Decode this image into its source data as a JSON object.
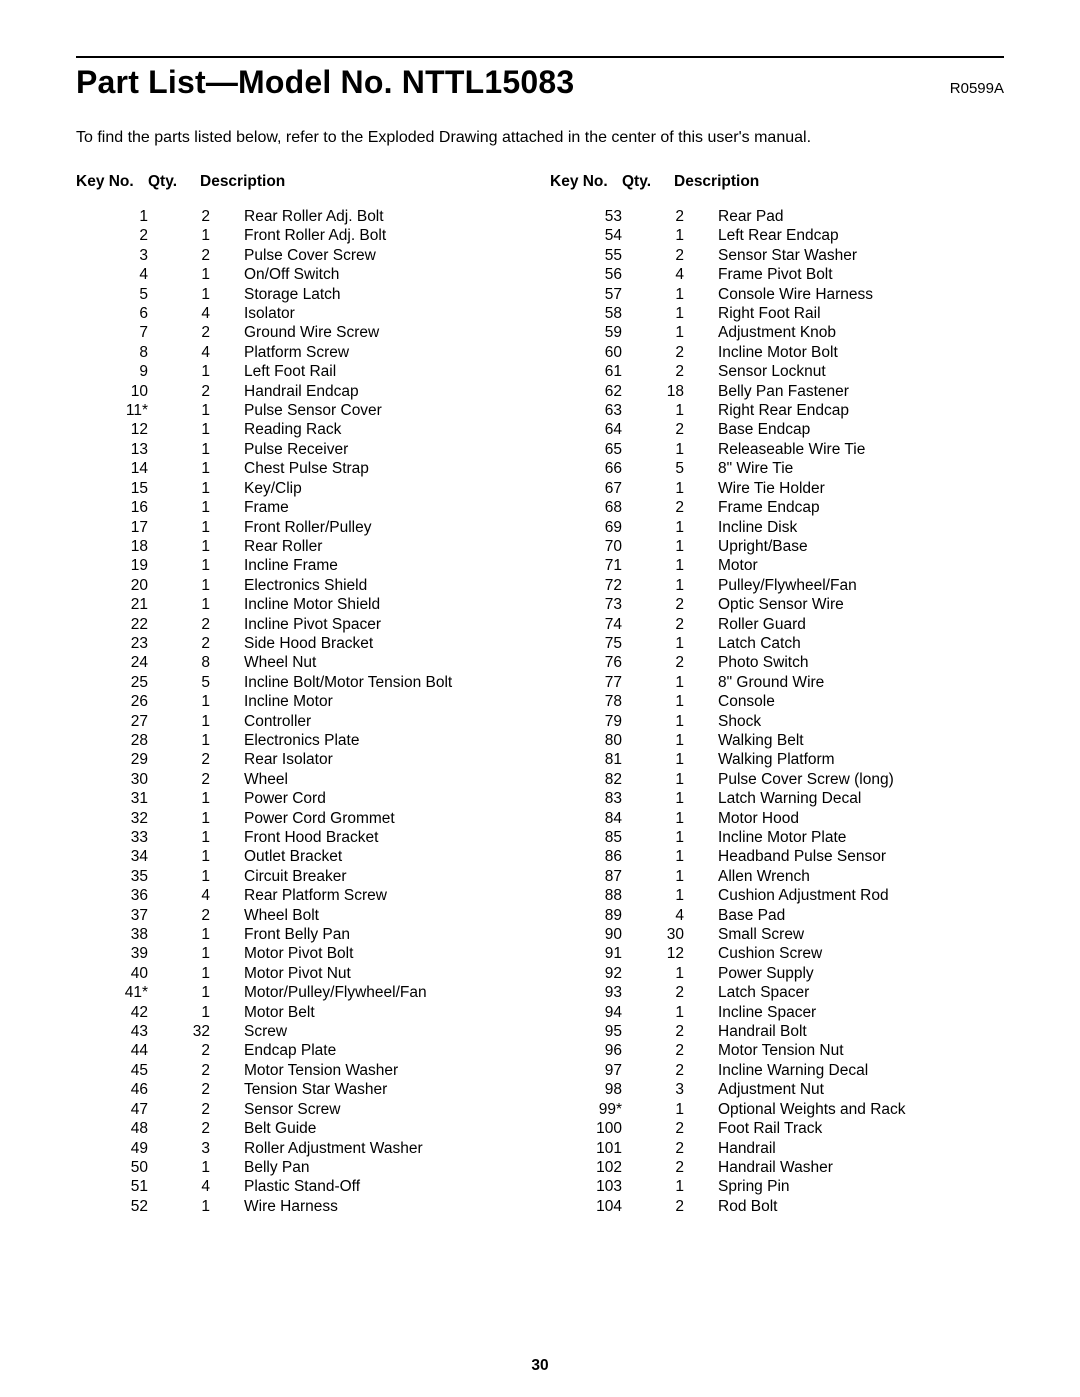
{
  "header": {
    "title": "Part List—Model No. NTTL15083",
    "revision": "R0599A"
  },
  "intro": "To find the parts listed below, refer to the Exploded Drawing attached in the center of this user's manual.",
  "col_headers": {
    "key_no": "Key No.",
    "qty": "Qty.",
    "description": "Description"
  },
  "left": [
    {
      "key": "1",
      "qty": "2",
      "desc": "Rear Roller Adj. Bolt"
    },
    {
      "key": "2",
      "qty": "1",
      "desc": "Front Roller Adj. Bolt"
    },
    {
      "key": "3",
      "qty": "2",
      "desc": "Pulse Cover Screw"
    },
    {
      "key": "4",
      "qty": "1",
      "desc": "On/Off Switch"
    },
    {
      "key": "5",
      "qty": "1",
      "desc": "Storage Latch"
    },
    {
      "key": "6",
      "qty": "4",
      "desc": "Isolator"
    },
    {
      "key": "7",
      "qty": "2",
      "desc": "Ground Wire Screw"
    },
    {
      "key": "8",
      "qty": "4",
      "desc": "Platform Screw"
    },
    {
      "key": "9",
      "qty": "1",
      "desc": "Left Foot Rail"
    },
    {
      "key": "10",
      "qty": "2",
      "desc": "Handrail Endcap"
    },
    {
      "key": "11*",
      "qty": "1",
      "desc": "Pulse Sensor Cover"
    },
    {
      "key": "12",
      "qty": "1",
      "desc": "Reading Rack"
    },
    {
      "key": "13",
      "qty": "1",
      "desc": "Pulse Receiver"
    },
    {
      "key": "14",
      "qty": "1",
      "desc": "Chest Pulse Strap"
    },
    {
      "key": "15",
      "qty": "1",
      "desc": "Key/Clip"
    },
    {
      "key": "16",
      "qty": "1",
      "desc": "Frame"
    },
    {
      "key": "17",
      "qty": "1",
      "desc": "Front Roller/Pulley"
    },
    {
      "key": "18",
      "qty": "1",
      "desc": "Rear Roller"
    },
    {
      "key": "19",
      "qty": "1",
      "desc": "Incline Frame"
    },
    {
      "key": "20",
      "qty": "1",
      "desc": "Electronics Shield"
    },
    {
      "key": "21",
      "qty": "1",
      "desc": "Incline Motor Shield"
    },
    {
      "key": "22",
      "qty": "2",
      "desc": "Incline Pivot Spacer"
    },
    {
      "key": "23",
      "qty": "2",
      "desc": "Side Hood Bracket"
    },
    {
      "key": "24",
      "qty": "8",
      "desc": "Wheel Nut"
    },
    {
      "key": "25",
      "qty": "5",
      "desc": "Incline Bolt/Motor Tension Bolt"
    },
    {
      "key": "26",
      "qty": "1",
      "desc": "Incline Motor"
    },
    {
      "key": "27",
      "qty": "1",
      "desc": "Controller"
    },
    {
      "key": "28",
      "qty": "1",
      "desc": "Electronics Plate"
    },
    {
      "key": "29",
      "qty": "2",
      "desc": "Rear Isolator"
    },
    {
      "key": "30",
      "qty": "2",
      "desc": "Wheel"
    },
    {
      "key": "31",
      "qty": "1",
      "desc": "Power Cord"
    },
    {
      "key": "32",
      "qty": "1",
      "desc": "Power Cord Grommet"
    },
    {
      "key": "33",
      "qty": "1",
      "desc": "Front Hood Bracket"
    },
    {
      "key": "34",
      "qty": "1",
      "desc": "Outlet Bracket"
    },
    {
      "key": "35",
      "qty": "1",
      "desc": "Circuit Breaker"
    },
    {
      "key": "36",
      "qty": "4",
      "desc": "Rear Platform Screw"
    },
    {
      "key": "37",
      "qty": "2",
      "desc": "Wheel Bolt"
    },
    {
      "key": "38",
      "qty": "1",
      "desc": "Front Belly Pan"
    },
    {
      "key": "39",
      "qty": "1",
      "desc": "Motor Pivot Bolt"
    },
    {
      "key": "40",
      "qty": "1",
      "desc": "Motor Pivot Nut"
    },
    {
      "key": "41*",
      "qty": "1",
      "desc": "Motor/Pulley/Flywheel/Fan"
    },
    {
      "key": "42",
      "qty": "1",
      "desc": "Motor Belt"
    },
    {
      "key": "43",
      "qty": "32",
      "desc": "Screw"
    },
    {
      "key": "44",
      "qty": "2",
      "desc": "Endcap Plate"
    },
    {
      "key": "45",
      "qty": "2",
      "desc": "Motor Tension Washer"
    },
    {
      "key": "46",
      "qty": "2",
      "desc": "Tension Star Washer"
    },
    {
      "key": "47",
      "qty": "2",
      "desc": "Sensor Screw"
    },
    {
      "key": "48",
      "qty": "2",
      "desc": "Belt Guide"
    },
    {
      "key": "49",
      "qty": "3",
      "desc": "Roller Adjustment Washer"
    },
    {
      "key": "50",
      "qty": "1",
      "desc": "Belly Pan"
    },
    {
      "key": "51",
      "qty": "4",
      "desc": "Plastic Stand-Off"
    },
    {
      "key": "52",
      "qty": "1",
      "desc": "Wire Harness"
    }
  ],
  "right": [
    {
      "key": "53",
      "qty": "2",
      "desc": "Rear Pad"
    },
    {
      "key": "54",
      "qty": "1",
      "desc": "Left Rear Endcap"
    },
    {
      "key": "55",
      "qty": "2",
      "desc": "Sensor Star Washer"
    },
    {
      "key": "56",
      "qty": "4",
      "desc": "Frame Pivot Bolt"
    },
    {
      "key": "57",
      "qty": "1",
      "desc": "Console Wire Harness"
    },
    {
      "key": "58",
      "qty": "1",
      "desc": "Right Foot Rail"
    },
    {
      "key": "59",
      "qty": "1",
      "desc": "Adjustment Knob"
    },
    {
      "key": "60",
      "qty": "2",
      "desc": "Incline Motor Bolt"
    },
    {
      "key": "61",
      "qty": "2",
      "desc": "Sensor Locknut"
    },
    {
      "key": "62",
      "qty": "18",
      "desc": "Belly Pan Fastener"
    },
    {
      "key": "63",
      "qty": "1",
      "desc": "Right Rear Endcap"
    },
    {
      "key": "64",
      "qty": "2",
      "desc": "Base Endcap"
    },
    {
      "key": "65",
      "qty": "1",
      "desc": "Releaseable Wire Tie"
    },
    {
      "key": "66",
      "qty": "5",
      "desc": "8\" Wire Tie"
    },
    {
      "key": "67",
      "qty": "1",
      "desc": "Wire Tie Holder"
    },
    {
      "key": "68",
      "qty": "2",
      "desc": "Frame Endcap"
    },
    {
      "key": "69",
      "qty": "1",
      "desc": "Incline Disk"
    },
    {
      "key": "70",
      "qty": "1",
      "desc": "Upright/Base"
    },
    {
      "key": "71",
      "qty": "1",
      "desc": "Motor"
    },
    {
      "key": "72",
      "qty": "1",
      "desc": "Pulley/Flywheel/Fan"
    },
    {
      "key": "73",
      "qty": "2",
      "desc": "Optic Sensor Wire"
    },
    {
      "key": "74",
      "qty": "2",
      "desc": "Roller Guard"
    },
    {
      "key": "75",
      "qty": "1",
      "desc": "Latch Catch"
    },
    {
      "key": "76",
      "qty": "2",
      "desc": "Photo Switch"
    },
    {
      "key": "77",
      "qty": "1",
      "desc": "8\" Ground Wire"
    },
    {
      "key": "78",
      "qty": "1",
      "desc": "Console"
    },
    {
      "key": "79",
      "qty": "1",
      "desc": "Shock"
    },
    {
      "key": "80",
      "qty": "1",
      "desc": "Walking Belt"
    },
    {
      "key": "81",
      "qty": "1",
      "desc": "Walking Platform"
    },
    {
      "key": "82",
      "qty": "1",
      "desc": "Pulse Cover Screw (long)"
    },
    {
      "key": "83",
      "qty": "1",
      "desc": "Latch Warning Decal"
    },
    {
      "key": "84",
      "qty": "1",
      "desc": "Motor Hood"
    },
    {
      "key": "85",
      "qty": "1",
      "desc": "Incline Motor Plate"
    },
    {
      "key": "86",
      "qty": "1",
      "desc": "Headband Pulse Sensor"
    },
    {
      "key": "87",
      "qty": "1",
      "desc": "Allen Wrench"
    },
    {
      "key": "88",
      "qty": "1",
      "desc": "Cushion Adjustment Rod"
    },
    {
      "key": "89",
      "qty": "4",
      "desc": "Base Pad"
    },
    {
      "key": "90",
      "qty": "30",
      "desc": "Small Screw"
    },
    {
      "key": "91",
      "qty": "12",
      "desc": "Cushion Screw"
    },
    {
      "key": "92",
      "qty": "1",
      "desc": "Power Supply"
    },
    {
      "key": "93",
      "qty": "2",
      "desc": "Latch Spacer"
    },
    {
      "key": "94",
      "qty": "1",
      "desc": "Incline Spacer"
    },
    {
      "key": "95",
      "qty": "2",
      "desc": "Handrail Bolt"
    },
    {
      "key": "96",
      "qty": "2",
      "desc": "Motor Tension Nut"
    },
    {
      "key": "97",
      "qty": "2",
      "desc": "Incline Warning Decal"
    },
    {
      "key": "98",
      "qty": "3",
      "desc": "Adjustment Nut"
    },
    {
      "key": "99*",
      "qty": "1",
      "desc": "Optional Weights and Rack"
    },
    {
      "key": "100",
      "qty": "2",
      "desc": "Foot Rail Track"
    },
    {
      "key": "101",
      "qty": "2",
      "desc": "Handrail"
    },
    {
      "key": "102",
      "qty": "2",
      "desc": "Handrail Washer"
    },
    {
      "key": "103",
      "qty": "1",
      "desc": "Spring Pin"
    },
    {
      "key": "104",
      "qty": "2",
      "desc": "Rod Bolt"
    }
  ],
  "page_number": "30"
}
